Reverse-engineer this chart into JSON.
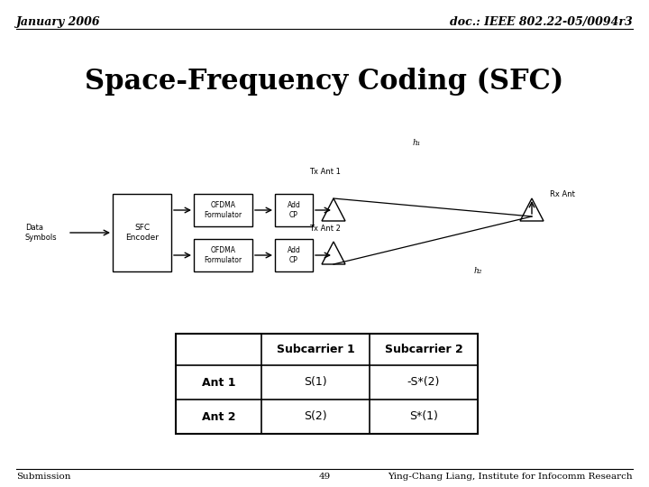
{
  "title": "Space-Frequency Coding (SFC)",
  "header_left": "January 2006",
  "header_right": "doc.: IEEE 802.22-05/0094r3",
  "footer_left": "Submission",
  "footer_center": "49",
  "footer_right": "Ying-Chang Liang, Institute for Infocomm Research",
  "table": {
    "col_headers": [
      "",
      "Subcarrier 1",
      "Subcarrier 2"
    ],
    "rows": [
      [
        "Ant 1",
        "S(1)",
        "-S*(2)"
      ],
      [
        "Ant 2",
        "S(2)",
        "S*(1)"
      ]
    ]
  },
  "bg_color": "#ffffff",
  "text_color": "#000000"
}
